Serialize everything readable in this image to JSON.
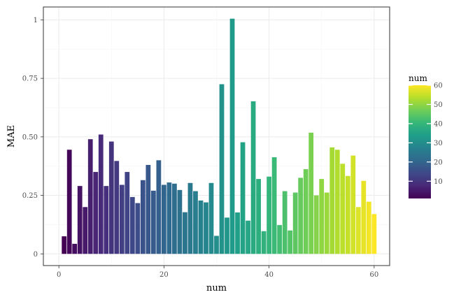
{
  "chart_data": {
    "type": "bar",
    "xlabel": "num",
    "ylabel": "MAE",
    "xlim": [
      -2.95,
      62.95
    ],
    "ylim": [
      -0.05,
      1.055
    ],
    "x_ticks": [
      0,
      20,
      40,
      60
    ],
    "x_tick_labels": [
      "0",
      "20",
      "40",
      "60"
    ],
    "y_ticks": [
      0,
      0.25,
      0.5,
      0.75,
      1
    ],
    "y_tick_labels": [
      "0",
      "0.25",
      "0.50",
      "0.75",
      "1"
    ],
    "grid": true,
    "fill_scale": "viridis",
    "legend": {
      "title": "num",
      "position": "right",
      "range": [
        1,
        60
      ],
      "breaks": [
        10,
        20,
        30,
        40,
        50,
        60
      ],
      "labels": [
        "10",
        "20",
        "30",
        "40",
        "50",
        "60"
      ]
    },
    "x": [
      1,
      2,
      3,
      4,
      5,
      6,
      7,
      8,
      9,
      10,
      11,
      12,
      13,
      14,
      15,
      16,
      17,
      18,
      19,
      20,
      21,
      22,
      23,
      24,
      25,
      26,
      27,
      28,
      29,
      30,
      31,
      32,
      33,
      34,
      35,
      36,
      37,
      38,
      39,
      40,
      41,
      42,
      43,
      44,
      45,
      46,
      47,
      48,
      49,
      50,
      51,
      52,
      53,
      54,
      55,
      56,
      57,
      58,
      59,
      60
    ],
    "values": [
      0.075,
      0.445,
      0.043,
      0.29,
      0.2,
      0.49,
      0.35,
      0.51,
      0.29,
      0.48,
      0.397,
      0.295,
      0.35,
      0.243,
      0.217,
      0.315,
      0.38,
      0.27,
      0.4,
      0.295,
      0.305,
      0.3,
      0.273,
      0.178,
      0.303,
      0.268,
      0.228,
      0.22,
      0.303,
      0.077,
      0.725,
      0.155,
      1.005,
      0.177,
      0.477,
      0.142,
      0.652,
      0.32,
      0.097,
      0.33,
      0.413,
      0.123,
      0.268,
      0.1,
      0.262,
      0.325,
      0.362,
      0.518,
      0.25,
      0.32,
      0.262,
      0.455,
      0.445,
      0.385,
      0.333,
      0.42,
      0.2,
      0.312,
      0.223,
      0.17
    ]
  },
  "colors": {
    "panel_border": "#333333",
    "grid_major": "#ebebeb",
    "grid_minor": "#f5f5f5",
    "tick": "#333333",
    "viridis": [
      "#440154",
      "#482878",
      "#3e4989",
      "#31688e",
      "#26828e",
      "#1f9e89",
      "#35b779",
      "#6ece58",
      "#b5de2b",
      "#fde725"
    ]
  }
}
